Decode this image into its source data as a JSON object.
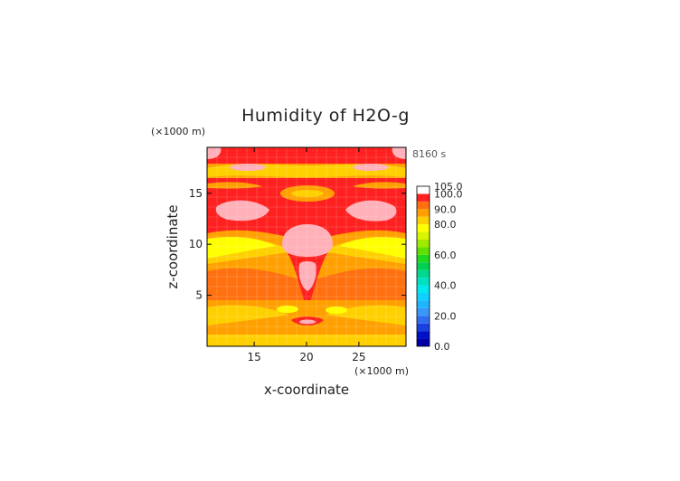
{
  "chart_data": {
    "type": "heatmap",
    "title": "Humidity of H2O-g",
    "time_label": "8160 s",
    "xlabel": "x-coordinate",
    "ylabel": "z-coordinate",
    "x_units": "(×1000 m)",
    "y_units": "(×1000 m)",
    "xlim": [
      10.5,
      29.5
    ],
    "ylim": [
      0,
      19.5
    ],
    "x_ticks": [
      15,
      20,
      25
    ],
    "y_ticks": [
      5,
      10,
      15
    ],
    "colorbar": {
      "range": [
        0,
        105
      ],
      "tick_values": [
        0,
        20,
        40,
        60,
        80,
        90,
        100,
        105
      ],
      "tick_labels": [
        "0.0",
        "20.0",
        "40.0",
        "60.0",
        "80.0",
        "90.0",
        "100.0",
        "105.0"
      ],
      "levels": [
        {
          "from": 0,
          "to": 5,
          "color": "#0000aa"
        },
        {
          "from": 5,
          "to": 10,
          "color": "#0010c8"
        },
        {
          "from": 10,
          "to": 15,
          "color": "#1a40e0"
        },
        {
          "from": 15,
          "to": 20,
          "color": "#2e6ef0"
        },
        {
          "from": 20,
          "to": 25,
          "color": "#3a96f8"
        },
        {
          "from": 25,
          "to": 30,
          "color": "#20b4ff"
        },
        {
          "from": 30,
          "to": 35,
          "color": "#10d0ff"
        },
        {
          "from": 35,
          "to": 40,
          "color": "#00e8f0"
        },
        {
          "from": 40,
          "to": 45,
          "color": "#00e0c0"
        },
        {
          "from": 45,
          "to": 50,
          "color": "#00d890"
        },
        {
          "from": 50,
          "to": 55,
          "color": "#00d050"
        },
        {
          "from": 55,
          "to": 60,
          "color": "#20d820"
        },
        {
          "from": 60,
          "to": 65,
          "color": "#60e000"
        },
        {
          "from": 65,
          "to": 70,
          "color": "#a0ea00"
        },
        {
          "from": 70,
          "to": 75,
          "color": "#d8f400"
        },
        {
          "from": 75,
          "to": 80,
          "color": "#ffff00"
        },
        {
          "from": 80,
          "to": 85,
          "color": "#ffd000"
        },
        {
          "from": 85,
          "to": 90,
          "color": "#ffa000"
        },
        {
          "from": 90,
          "to": 95,
          "color": "#ff7010"
        },
        {
          "from": 95,
          "to": 100,
          "color": "#ff2020"
        },
        {
          "from": 100,
          "to": 105,
          "color": "#ffffff"
        }
      ]
    },
    "field_colors": {
      "saturated": "#ffb0b8",
      "band_95_100": "#ff2020",
      "band_90_95": "#ff7010",
      "band_85_90": "#ffa000",
      "band_80_85": "#ffd000",
      "band_75_80": "#ffff00"
    }
  }
}
